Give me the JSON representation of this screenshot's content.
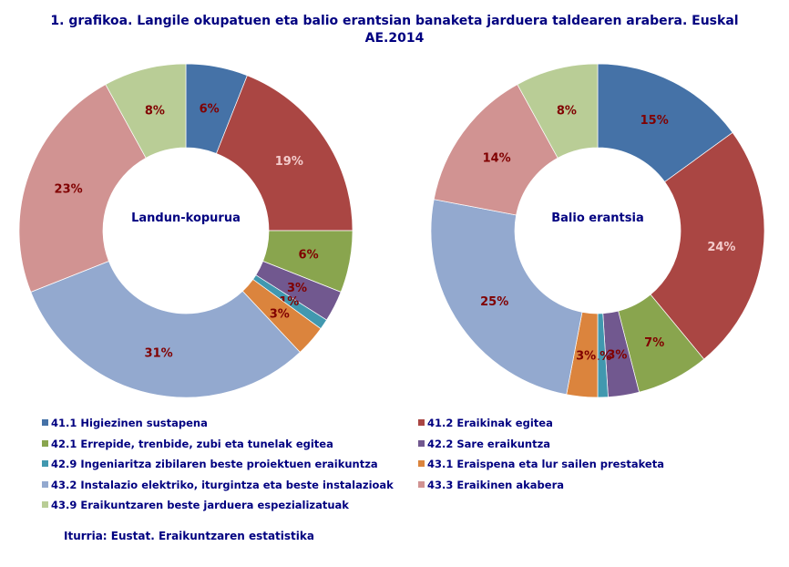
{
  "title_line1": "1. grafikoa. Langile okupatuen eta balio erantsian banaketa jarduera taldearen arabera. Euskal",
  "title_line2": "AE.2014",
  "source": "Iturria: Eustat. Eraikuntzaren estatistika",
  "chart_data": [
    {
      "type": "pie",
      "donut": true,
      "center_label": "Landun-kopurua",
      "categories": [
        "41.1 Higiezinen sustapena",
        "41.2 Eraikinak egitea",
        "42.1 Errepide, trenbide, zubi eta tunelak egitea",
        "42.2 Sare eraikuntza",
        "42.9 Ingeniaritza zibilaren beste proiektuen eraikuntza",
        "43.1 Eraispena eta lur sailen prestaketa",
        "43.2 Instalazio elektriko, iturgintza eta beste instalazioak",
        "43.3 Eraikinen akabera",
        "43.9 Eraikuntzaren beste jarduera espezializatuak"
      ],
      "values": [
        6,
        19,
        6,
        3,
        1,
        3,
        31,
        23,
        8
      ],
      "data_labels": [
        "6%",
        "19%",
        "6%",
        "3%",
        "1%",
        "3%",
        "31%",
        "23%",
        "8%"
      ]
    },
    {
      "type": "pie",
      "donut": true,
      "center_label": "Balio erantsia",
      "categories": [
        "41.1 Higiezinen sustapena",
        "41.2 Eraikinak egitea",
        "42.1 Errepide, trenbide, zubi eta tunelak egitea",
        "42.2 Sare eraikuntza",
        "42.9 Ingeniaritza zibilaren beste proiektuen eraikuntza",
        "43.1 Eraispena eta lur sailen prestaketa",
        "43.2 Instalazio elektriko, iturgintza eta beste instalazioak",
        "43.3 Eraikinen akabera",
        "43.9 Eraikuntzaren beste jarduera espezializatuak"
      ],
      "values": [
        15,
        24,
        7,
        3,
        1,
        3,
        25,
        14,
        8
      ],
      "data_labels": [
        "15%",
        "24%",
        "7%",
        "3%",
        "1%",
        "3%",
        "25%",
        "14%",
        "8%"
      ]
    }
  ],
  "legend": {
    "placement": "bottom",
    "items": [
      "41.1 Higiezinen sustapena",
      "41.2 Eraikinak egitea",
      "42.1 Errepide, trenbide, zubi eta tunelak egitea",
      "42.2 Sare eraikuntza",
      "42.9 Ingeniaritza zibilaren beste proiektuen eraikuntza",
      "43.1 Eraispena eta lur sailen prestaketa",
      "43.2 Instalazio elektriko, iturgintza eta beste instalazioak",
      "43.3 Eraikinen akabera",
      "43.9 Eraikuntzaren beste jarduera espezializatuak"
    ]
  },
  "colors": [
    "#4572A7",
    "#AA4643",
    "#89A54E",
    "#71588F",
    "#4198AF",
    "#DB843D",
    "#93A9CF",
    "#D19392",
    "#B9CD96"
  ],
  "label_colors": [
    "#800000",
    "#F4CCCC",
    "#800000",
    "#800000",
    "#800000",
    "#800000",
    "#800000",
    "#800000",
    "#800000"
  ]
}
